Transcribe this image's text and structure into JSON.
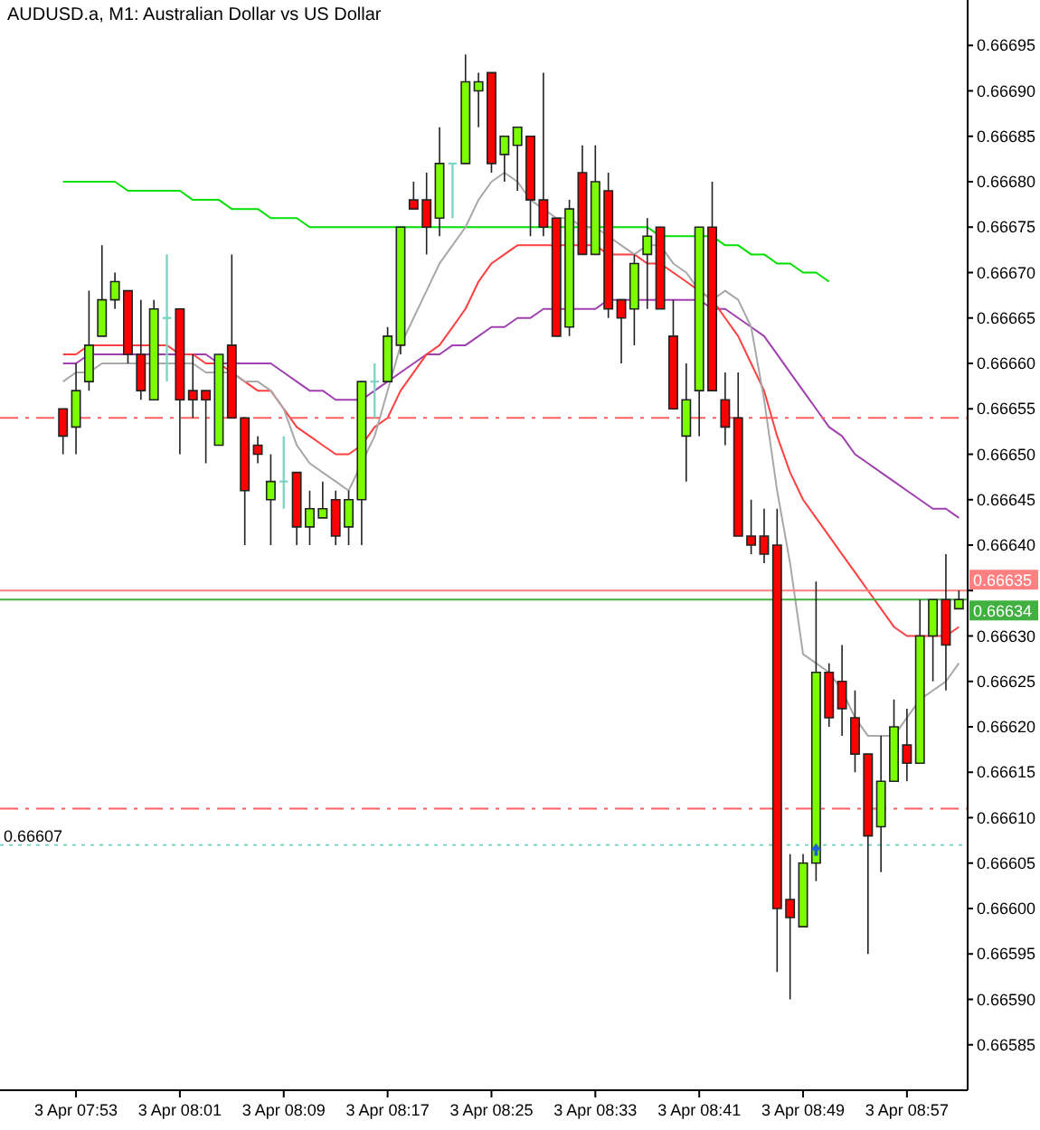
{
  "chart_data": {
    "type": "candlestick",
    "title": "AUDUSD.a, M1:  Australian Dollar vs US Dollar",
    "categories": [
      null,
      "3 Apr 07:53",
      null,
      null,
      null,
      null,
      null,
      null,
      null,
      "3 Apr 08:01",
      null,
      null,
      null,
      null,
      null,
      null,
      null,
      "3 Apr 08:09",
      null,
      null,
      null,
      null,
      null,
      null,
      null,
      "3 Apr 08:17",
      null,
      null,
      null,
      null,
      null,
      null,
      null,
      "3 Apr 08:25",
      null,
      null,
      null,
      null,
      null,
      null,
      null,
      "3 Apr 08:33",
      null,
      null,
      null,
      null,
      null,
      null,
      null,
      "3 Apr 08:41",
      null,
      null,
      null,
      null,
      null,
      null,
      null,
      "3 Apr 08:49",
      null,
      null,
      null,
      null,
      null,
      null,
      null,
      "3 Apr 08:57",
      null,
      null,
      null,
      null
    ],
    "ohlc": [
      [
        0.66655,
        0.66655,
        0.6665,
        0.66652
      ],
      [
        0.66653,
        0.6666,
        0.6665,
        0.66657
      ],
      [
        0.66658,
        0.66668,
        0.66657,
        0.66662
      ],
      [
        0.66663,
        0.66673,
        0.66663,
        0.66667
      ],
      [
        0.66667,
        0.6667,
        0.66666,
        0.66669
      ],
      [
        0.66668,
        0.66668,
        0.6666,
        0.66661
      ],
      [
        0.66661,
        0.66667,
        0.66656,
        0.66657
      ],
      [
        0.66656,
        0.66667,
        0.66656,
        0.66666
      ],
      [
        0.66665,
        0.66672,
        0.66658,
        0.66665
      ],
      [
        0.66666,
        0.66666,
        0.6665,
        0.66656
      ],
      [
        0.66657,
        0.66661,
        0.66654,
        0.66656
      ],
      [
        0.66657,
        0.66657,
        0.66649,
        0.66656
      ],
      [
        0.66651,
        0.66661,
        0.66651,
        0.66661
      ],
      [
        0.66662,
        0.66672,
        0.66654,
        0.66654
      ],
      [
        0.66654,
        0.66654,
        0.6664,
        0.66646
      ],
      [
        0.66651,
        0.66652,
        0.66649,
        0.6665
      ],
      [
        0.66645,
        0.6665,
        0.6664,
        0.66647
      ],
      [
        0.66647,
        0.66652,
        0.66644,
        0.66647
      ],
      [
        0.66648,
        0.66648,
        0.6664,
        0.66642
      ],
      [
        0.66642,
        0.66646,
        0.6664,
        0.66644
      ],
      [
        0.66643,
        0.66647,
        0.66643,
        0.66644
      ],
      [
        0.66645,
        0.66646,
        0.6664,
        0.66641
      ],
      [
        0.66642,
        0.66646,
        0.6664,
        0.66645
      ],
      [
        0.66645,
        0.66658,
        0.6664,
        0.66658
      ],
      [
        0.66658,
        0.6666,
        0.66654,
        0.66658
      ],
      [
        0.66658,
        0.66664,
        0.66658,
        0.66663
      ],
      [
        0.66662,
        0.66675,
        0.66661,
        0.66675
      ],
      [
        0.66678,
        0.6668,
        0.66677,
        0.66677
      ],
      [
        0.66678,
        0.66681,
        0.66672,
        0.66675
      ],
      [
        0.66676,
        0.66686,
        0.66674,
        0.66682
      ],
      [
        0.66682,
        0.66682,
        0.66676,
        0.66682
      ],
      [
        0.66682,
        0.66694,
        0.66682,
        0.66691
      ],
      [
        0.6669,
        0.66692,
        0.66686,
        0.66691
      ],
      [
        0.66692,
        0.66692,
        0.66681,
        0.66682
      ],
      [
        0.66683,
        0.66685,
        0.6668,
        0.66685
      ],
      [
        0.66684,
        0.66686,
        0.66679,
        0.66686
      ],
      [
        0.66685,
        0.66685,
        0.66674,
        0.66678
      ],
      [
        0.66678,
        0.66692,
        0.66674,
        0.66675
      ],
      [
        0.66676,
        0.66676,
        0.66663,
        0.66663
      ],
      [
        0.66664,
        0.66678,
        0.66663,
        0.66677
      ],
      [
        0.66681,
        0.66684,
        0.66672,
        0.66672
      ],
      [
        0.66672,
        0.66684,
        0.66672,
        0.6668
      ],
      [
        0.66679,
        0.66681,
        0.66665,
        0.66666
      ],
      [
        0.66667,
        0.66667,
        0.6666,
        0.66665
      ],
      [
        0.66666,
        0.66672,
        0.66662,
        0.66671
      ],
      [
        0.66672,
        0.66676,
        0.66666,
        0.66674
      ],
      [
        0.66675,
        0.66675,
        0.66666,
        0.66666
      ],
      [
        0.66663,
        0.66667,
        0.66655,
        0.66655
      ],
      [
        0.66652,
        0.6666,
        0.66647,
        0.66656
      ],
      [
        0.66657,
        0.66675,
        0.66652,
        0.66675
      ],
      [
        0.66675,
        0.6668,
        0.66657,
        0.66657
      ],
      [
        0.66656,
        0.66659,
        0.66651,
        0.66653
      ],
      [
        0.66654,
        0.66659,
        0.66641,
        0.66641
      ],
      [
        0.66641,
        0.66645,
        0.66639,
        0.6664
      ],
      [
        0.66641,
        0.66644,
        0.66638,
        0.66639
      ],
      [
        0.6664,
        0.66644,
        0.66593,
        0.666
      ],
      [
        0.66601,
        0.66606,
        0.6659,
        0.66599
      ],
      [
        0.66598,
        0.66606,
        0.66598,
        0.66605
      ],
      [
        0.66605,
        0.66636,
        0.66603,
        0.66626
      ],
      [
        0.66626,
        0.66627,
        0.6662,
        0.66621
      ],
      [
        0.66625,
        0.66629,
        0.66619,
        0.66622
      ],
      [
        0.66621,
        0.66624,
        0.66615,
        0.66617
      ],
      [
        0.66617,
        0.66617,
        0.66595,
        0.66608
      ],
      [
        0.66609,
        0.66619,
        0.66604,
        0.66614
      ],
      [
        0.66614,
        0.66623,
        0.66614,
        0.6662
      ],
      [
        0.66618,
        0.66622,
        0.66614,
        0.66616
      ],
      [
        0.66616,
        0.66634,
        0.66616,
        0.6663
      ],
      [
        0.6663,
        0.66634,
        0.66625,
        0.66634
      ],
      [
        0.66634,
        0.66639,
        0.66624,
        0.66629
      ],
      [
        0.66633,
        0.66635,
        0.66633,
        0.66634
      ]
    ],
    "colors": [
      "#ff0000",
      "#7cfc00",
      "#7cfc00",
      "#7cfc00",
      "#7cfc00",
      "#ff0000",
      "#ff0000",
      "#7cfc00",
      "#80d4c8",
      "#ff0000",
      "#ff0000",
      "#ff0000",
      "#7cfc00",
      "#ff0000",
      "#ff0000",
      "#ff0000",
      "#7cfc00",
      "#80d4c8",
      "#ff0000",
      "#7cfc00",
      "#7cfc00",
      "#ff0000",
      "#7cfc00",
      "#7cfc00",
      "#80d4c8",
      "#7cfc00",
      "#7cfc00",
      "#ff0000",
      "#ff0000",
      "#7cfc00",
      "#80d4c8",
      "#7cfc00",
      "#7cfc00",
      "#ff0000",
      "#7cfc00",
      "#7cfc00",
      "#ff0000",
      "#ff0000",
      "#ff0000",
      "#7cfc00",
      "#ff0000",
      "#7cfc00",
      "#ff0000",
      "#ff0000",
      "#7cfc00",
      "#7cfc00",
      "#ff0000",
      "#ff0000",
      "#7cfc00",
      "#7cfc00",
      "#ff0000",
      "#ff0000",
      "#ff0000",
      "#ff0000",
      "#ff0000",
      "#ff0000",
      "#ff0000",
      "#7cfc00",
      "#7cfc00",
      "#ff0000",
      "#ff0000",
      "#ff0000",
      "#ff0000",
      "#7cfc00",
      "#7cfc00",
      "#ff0000",
      "#7cfc00",
      "#7cfc00",
      "#ff0000",
      "#7cfc00"
    ],
    "series": [
      {
        "type": "line",
        "color": "#00e000",
        "values": [
          0.6668,
          0.6668,
          0.6668,
          0.6668,
          0.6668,
          0.66679,
          0.66679,
          0.66679,
          0.66679,
          0.66679,
          0.66678,
          0.66678,
          0.66678,
          0.66677,
          0.66677,
          0.66677,
          0.66676,
          0.66676,
          0.66676,
          0.66675,
          0.66675,
          0.66675,
          0.66675,
          0.66675,
          0.66675,
          0.66675,
          0.66675,
          0.66675,
          0.66675,
          0.66675,
          0.66675,
          0.66675,
          0.66675,
          0.66675,
          0.66675,
          0.66675,
          0.66675,
          0.66675,
          0.66675,
          0.66675,
          0.66675,
          0.66675,
          0.66675,
          0.66675,
          0.66675,
          0.66675,
          0.66674,
          0.66674,
          0.66674,
          0.66674,
          0.66674,
          0.66673,
          0.66673,
          0.66672,
          0.66672,
          0.66671,
          0.66671,
          0.6667,
          0.6667,
          0.66669,
          null,
          null,
          null,
          null,
          null,
          null,
          null,
          null,
          null,
          null
        ]
      },
      {
        "type": "line",
        "color": "#a040b0",
        "values": [
          0.6666,
          0.6666,
          0.66661,
          0.66661,
          0.66661,
          0.66661,
          0.66661,
          0.66661,
          0.66661,
          0.66661,
          0.66661,
          0.66661,
          0.6666,
          0.6666,
          0.6666,
          0.6666,
          0.6666,
          0.66659,
          0.66658,
          0.66657,
          0.66657,
          0.66656,
          0.66656,
          0.66656,
          0.66657,
          0.66658,
          0.66659,
          0.6666,
          0.66661,
          0.66661,
          0.66662,
          0.66662,
          0.66663,
          0.66664,
          0.66664,
          0.66665,
          0.66665,
          0.66666,
          0.66666,
          0.66666,
          0.66666,
          0.66666,
          0.66667,
          0.66667,
          0.66667,
          0.66667,
          0.66667,
          0.66667,
          0.66667,
          0.66667,
          0.66666,
          0.66666,
          0.66665,
          0.66664,
          0.66663,
          0.66661,
          0.66659,
          0.66657,
          0.66655,
          0.66653,
          0.66652,
          0.6665,
          0.66649,
          0.66648,
          0.66647,
          0.66646,
          0.66645,
          0.66644,
          0.66644,
          0.66643
        ]
      },
      {
        "type": "line",
        "color": "#ff4040",
        "values": [
          0.66661,
          0.66661,
          0.66662,
          0.66662,
          0.66662,
          0.66662,
          0.66662,
          0.66662,
          0.66662,
          0.66661,
          0.66661,
          0.6666,
          0.6666,
          0.66659,
          0.66658,
          0.66657,
          0.66657,
          0.66655,
          0.66653,
          0.66652,
          0.66651,
          0.6665,
          0.6665,
          0.66651,
          0.66653,
          0.66654,
          0.66657,
          0.66659,
          0.66661,
          0.66662,
          0.66664,
          0.66666,
          0.66669,
          0.66671,
          0.66672,
          0.66673,
          0.66673,
          0.66673,
          0.66673,
          0.66673,
          0.66673,
          0.66673,
          0.66672,
          0.66672,
          0.66672,
          0.66671,
          0.66671,
          0.6667,
          0.66669,
          0.66668,
          0.66667,
          0.66665,
          0.66663,
          0.6666,
          0.66657,
          0.66652,
          0.66648,
          0.66645,
          0.66643,
          0.66641,
          0.66639,
          0.66637,
          0.66635,
          0.66633,
          0.66631,
          0.6663,
          0.6663,
          0.6663,
          0.6663,
          0.66631
        ]
      },
      {
        "type": "line",
        "color": "#a8a8a8",
        "values": [
          0.66658,
          0.66659,
          0.66659,
          0.6666,
          0.6666,
          0.6666,
          0.6666,
          0.6666,
          0.6666,
          0.6666,
          0.6666,
          0.66659,
          0.66659,
          0.66659,
          0.66658,
          0.66658,
          0.66657,
          0.66655,
          0.66651,
          0.66649,
          0.66648,
          0.66647,
          0.66646,
          0.66649,
          0.66652,
          0.66657,
          0.66662,
          0.66665,
          0.66668,
          0.66671,
          0.66673,
          0.66675,
          0.66678,
          0.6668,
          0.66681,
          0.6668,
          0.66678,
          0.66677,
          0.66676,
          0.66676,
          0.66675,
          0.66675,
          0.66674,
          0.66673,
          0.66672,
          0.66673,
          0.66673,
          0.66671,
          0.6667,
          0.66668,
          0.66667,
          0.66668,
          0.66667,
          0.66664,
          0.66656,
          0.66646,
          0.66638,
          0.66628,
          0.66627,
          0.66626,
          0.66624,
          0.66621,
          0.66619,
          0.66619,
          0.66619,
          0.66621,
          0.66623,
          0.66624,
          0.66625,
          0.66627
        ]
      }
    ],
    "ref_lines": [
      {
        "axis": "y",
        "value": 0.66654,
        "color": "#ff6060",
        "line_style": "dashed"
      },
      {
        "axis": "y",
        "value": 0.66611,
        "color": "#ff6060",
        "line_style": "dashed"
      },
      {
        "axis": "y",
        "value": 0.66607,
        "color": "#80d4c8",
        "line_style": "dotted",
        "label": "0.66607"
      },
      {
        "axis": "y",
        "value": 0.66635,
        "color": "#ff8080",
        "line_style": "solid",
        "label": "0.66635"
      },
      {
        "axis": "y",
        "value": 0.66634,
        "color": "#40b040",
        "line_style": "solid",
        "label": "0.66634"
      }
    ],
    "ylim": [
      0.6658,
      0.667
    ],
    "yticks": [
      0.66585,
      {
        "value": 0.6659,
        "label": "0.66590"
      },
      0.66595,
      {
        "value": 0.666,
        "label": "0.66600"
      },
      0.66605,
      {
        "value": 0.6661,
        "label": "0.66610"
      },
      0.66615,
      {
        "value": 0.6662,
        "label": "0.66620"
      },
      0.66625,
      {
        "value": 0.6663,
        "label": "0.66630"
      },
      {
        "value": 0.66635,
        "label": null
      },
      {
        "value": 0.6664,
        "label": "0.66640"
      },
      0.66645,
      {
        "value": 0.6665,
        "label": "0.66650"
      },
      0.66655,
      {
        "value": 0.6666,
        "label": "0.66660"
      },
      0.66665,
      {
        "value": 0.6667,
        "label": "0.66670"
      },
      0.66675,
      {
        "value": 0.6668,
        "label": "0.66680"
      },
      0.66685,
      {
        "value": 0.6669,
        "label": "0.66690"
      },
      0.66695
    ],
    "grid": false
  }
}
